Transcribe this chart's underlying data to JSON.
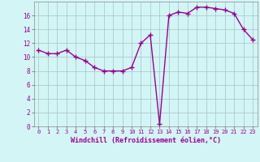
{
  "x": [
    0,
    1,
    2,
    3,
    4,
    5,
    6,
    7,
    8,
    9,
    10,
    11,
    12,
    13,
    14,
    15,
    16,
    17,
    18,
    19,
    20,
    21,
    22,
    23
  ],
  "y": [
    11.0,
    10.5,
    10.5,
    11.0,
    10.0,
    9.5,
    8.5,
    8.0,
    8.0,
    8.0,
    8.5,
    12.0,
    13.2,
    0.3,
    16.0,
    16.5,
    16.3,
    17.2,
    17.2,
    17.0,
    16.8,
    16.3,
    14.0,
    12.5
  ],
  "line_color": "#990099",
  "bg_color": "#d4f5f5",
  "grid_color": "#aacccc",
  "xlabel": "Windchill (Refroidissement éolien,°C)",
  "tick_color": "#990099",
  "ylim": [
    0,
    18
  ],
  "yticks": [
    0,
    2,
    4,
    6,
    8,
    10,
    12,
    14,
    16
  ],
  "xticks": [
    0,
    1,
    2,
    3,
    4,
    5,
    6,
    7,
    8,
    9,
    10,
    11,
    12,
    13,
    14,
    15,
    16,
    17,
    18,
    19,
    20,
    21,
    22,
    23
  ],
  "marker": "+",
  "marker_size": 4,
  "line_width": 1.0,
  "axes_color": "#888888"
}
